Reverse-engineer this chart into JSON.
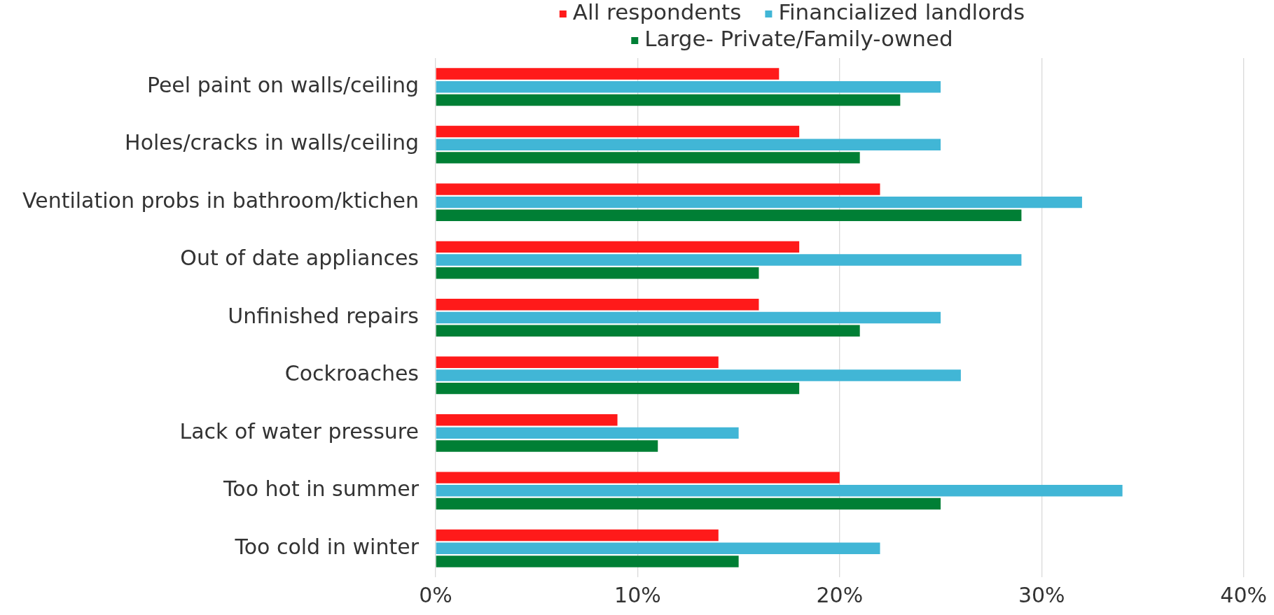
{
  "chart_data": {
    "type": "bar",
    "orientation": "horizontal",
    "categories": [
      "Peel paint on walls/ceiling",
      "Holes/cracks in walls/ceiling",
      "Ventilation probs in bathroom/ktichen",
      "Out of date appliances",
      "Unfinished repairs",
      "Cockroaches",
      "Lack of water pressure",
      "Too hot in summer",
      "Too cold in winter"
    ],
    "series": [
      {
        "name": "All respondents",
        "color": "#ff1a1a",
        "values": [
          17,
          18,
          22,
          18,
          16,
          14,
          9,
          20,
          14
        ]
      },
      {
        "name": "Financialized landlords",
        "color": "#41b6d6",
        "values": [
          25,
          25,
          32,
          29,
          25,
          26,
          15,
          34,
          22
        ]
      },
      {
        "name": "Large- Private/Family-owned",
        "color": "#007f35",
        "values": [
          23,
          21,
          29,
          16,
          21,
          18,
          11,
          25,
          15
        ]
      }
    ],
    "xlim": [
      0,
      40
    ],
    "xticks": [
      {
        "value": 0,
        "label": "0%"
      },
      {
        "value": 10,
        "label": "10%"
      },
      {
        "value": 20,
        "label": "20%"
      },
      {
        "value": 30,
        "label": "30%"
      },
      {
        "value": 40,
        "label": "40%"
      }
    ],
    "grid": "x",
    "legend": "top"
  }
}
